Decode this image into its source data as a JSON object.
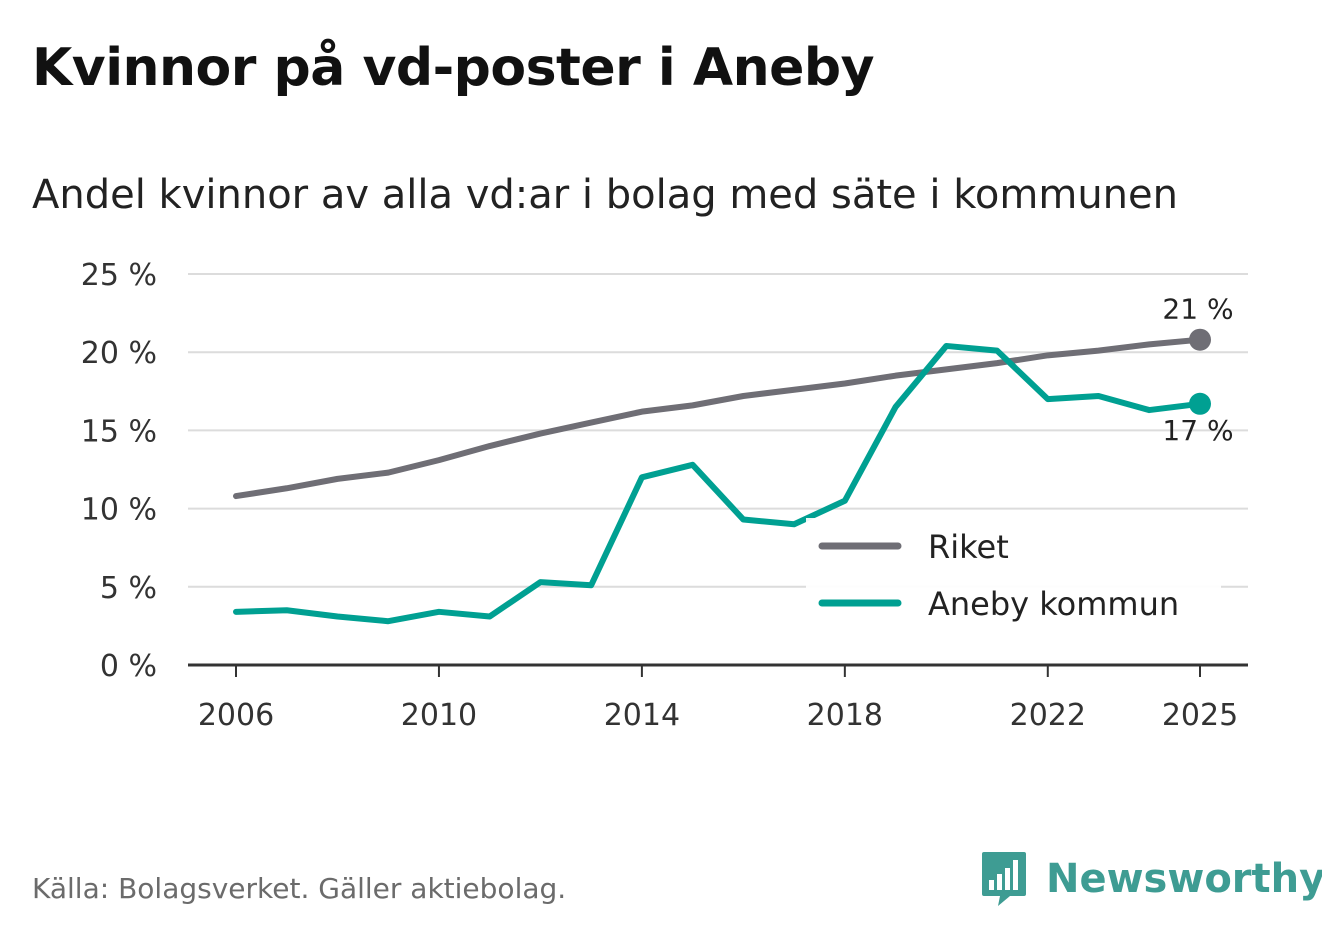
{
  "title": "Kvinnor på vd-poster i Aneby",
  "subtitle": "Andel kvinnor av alla vd:ar i bolag med säte i kommunen",
  "source": "Källa: Bolagsverket. Gäller aktiebolag.",
  "brand": {
    "name": "Newsworthy",
    "icon": "newsworthy-logo-icon",
    "color": "#3e9c93"
  },
  "chart_data": {
    "type": "line",
    "title": "Kvinnor på vd-poster i Aneby",
    "subtitle": "Andel kvinnor av alla vd:ar i bolag med säte i kommunen",
    "xlabel": "",
    "ylabel": "",
    "x": [
      2006,
      2007,
      2008,
      2009,
      2010,
      2011,
      2012,
      2013,
      2014,
      2015,
      2016,
      2017,
      2018,
      2019,
      2020,
      2021,
      2022,
      2023,
      2024,
      2025
    ],
    "xlim": [
      2006,
      2025
    ],
    "ylim": [
      0,
      25
    ],
    "x_ticks": [
      2006,
      2010,
      2014,
      2018,
      2022,
      2025
    ],
    "x_tick_labels": [
      "2006",
      "2010",
      "2014",
      "2018",
      "2022",
      "2025"
    ],
    "y_ticks": [
      0,
      5,
      10,
      15,
      20,
      25
    ],
    "y_tick_labels": [
      "0 %",
      "5 %",
      "10 %",
      "15 %",
      "20 %",
      "25 %"
    ],
    "grid": true,
    "legend_position": "bottom-right",
    "series": [
      {
        "name": "Riket",
        "color": "#6f6e75",
        "values": [
          10.8,
          11.3,
          11.9,
          12.3,
          13.1,
          14.0,
          14.8,
          15.5,
          16.2,
          16.6,
          17.2,
          17.6,
          18.0,
          18.5,
          18.9,
          19.3,
          19.8,
          20.1,
          20.5,
          20.8
        ],
        "end_label": "21 %"
      },
      {
        "name": "Aneby kommun",
        "color": "#00a092",
        "values": [
          3.4,
          3.5,
          3.1,
          2.8,
          3.4,
          3.1,
          5.3,
          5.1,
          12.0,
          12.8,
          9.3,
          9.0,
          10.5,
          16.5,
          20.4,
          20.1,
          17.0,
          17.2,
          16.3,
          16.7
        ],
        "end_label": "17 %"
      }
    ]
  }
}
